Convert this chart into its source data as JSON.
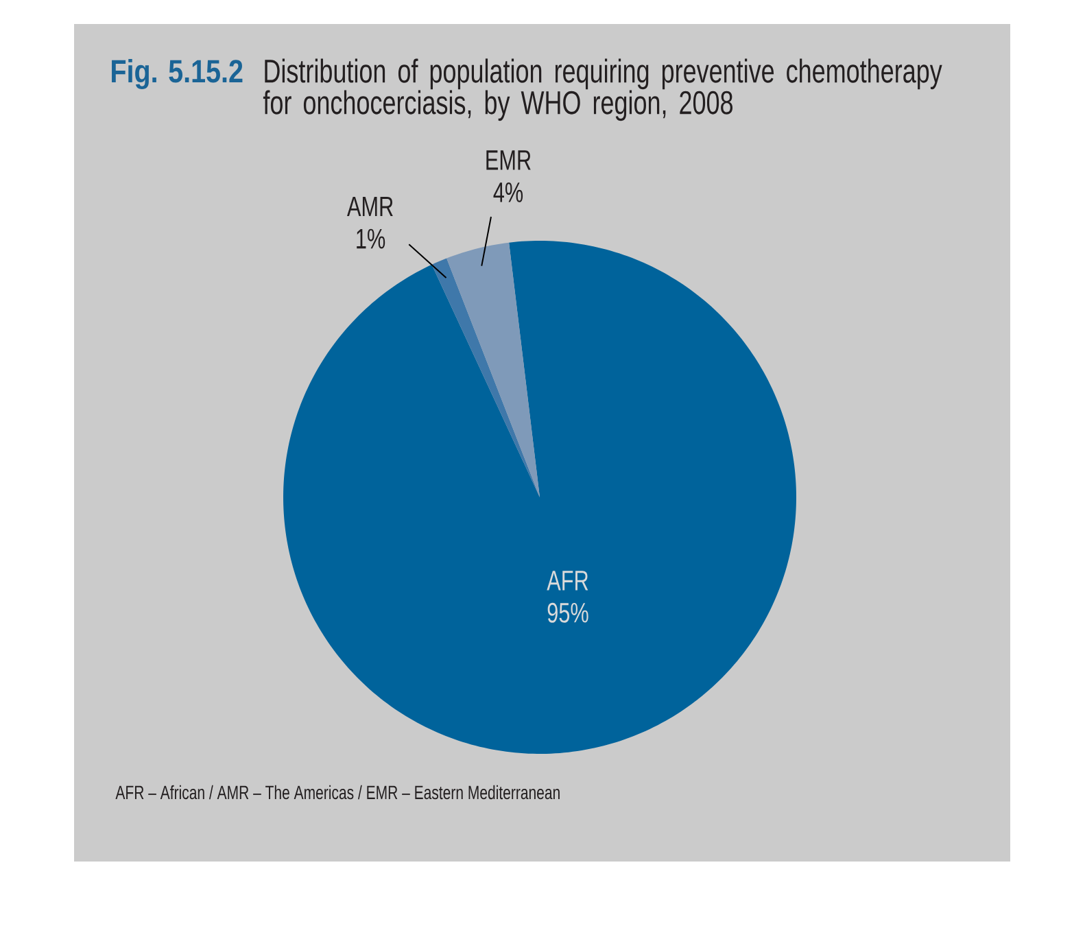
{
  "chart_data": {
    "type": "pie",
    "title": "Fig. 5.15.2",
    "subtitle": "Distribution of population requiring preventive chemotherapy for onchocerciasis, by WHO region, 2008",
    "categories": [
      "AFR",
      "AMR",
      "EMR"
    ],
    "values": [
      95,
      1,
      4
    ],
    "colors": [
      "#00639b",
      "#3f78aa",
      "#7f9ab9"
    ],
    "value_labels": [
      "95%",
      "1%",
      "4%"
    ],
    "annotations": [
      "AFR – African / AMR – The Americas / EMR – Eastern Mediterranean"
    ]
  }
}
